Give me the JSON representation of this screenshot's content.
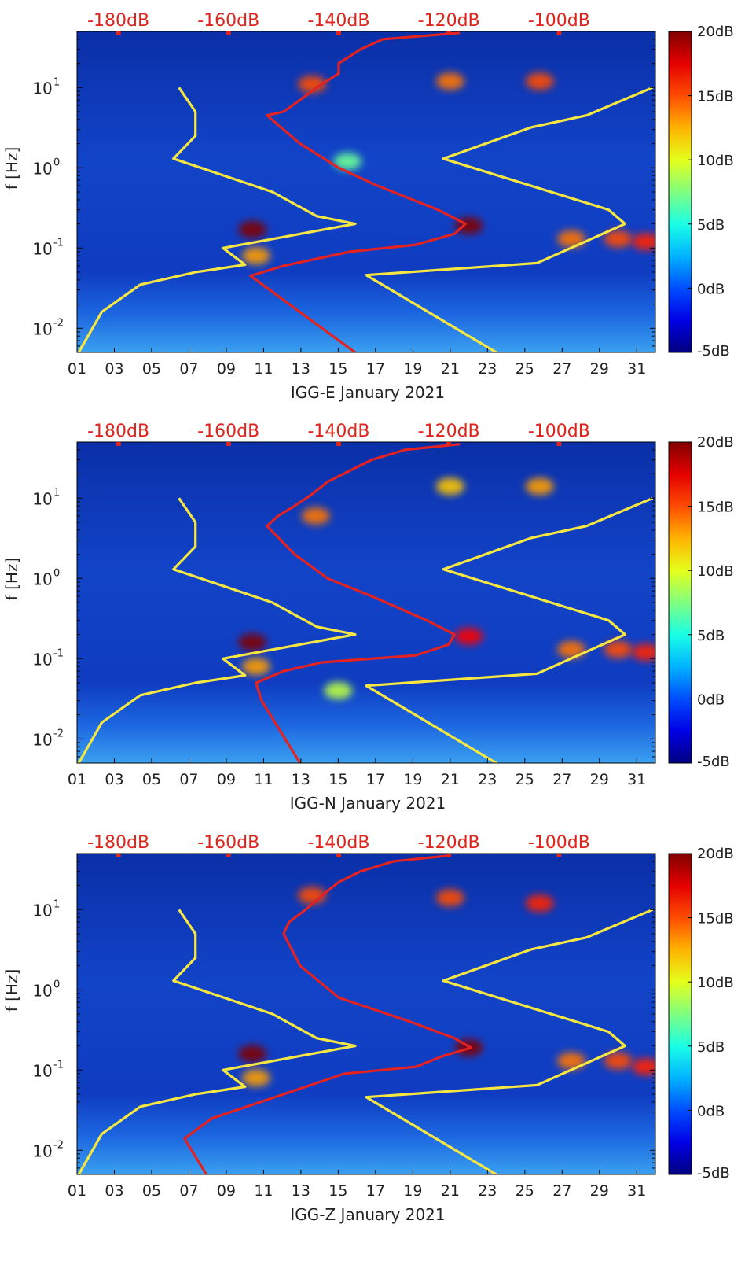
{
  "chart_data": [
    {
      "type": "heatmap",
      "title": "",
      "xlabel": "IGG-E January 2021",
      "ylabel": "f [Hz]",
      "x_ticks": [
        "01",
        "03",
        "05",
        "07",
        "09",
        "11",
        "13",
        "15",
        "17",
        "19",
        "21",
        "23",
        "25",
        "27",
        "29",
        "31"
      ],
      "y_ticks": [
        "10^-2",
        "10^-1",
        "10^0",
        "10^1"
      ],
      "xlim": [
        1,
        32
      ],
      "ylim": [
        0.005,
        50
      ],
      "y_scale": "log",
      "top_ticks": [
        "-180dB",
        "-160dB",
        "-140dB",
        "-120dB",
        "-100dB"
      ],
      "top_range": [
        -187.5,
        -82.5
      ],
      "colorbar": {
        "ticks": [
          "20dB",
          "15dB",
          "10dB",
          "5dB",
          "0dB",
          "-5dB"
        ],
        "range": [
          -5,
          20
        ],
        "colormap": "jet"
      },
      "hotspots_db": [
        {
          "day": 10.4,
          "f": 0.17,
          "value": 20
        },
        {
          "day": 22.0,
          "f": 0.19,
          "value": 20
        },
        {
          "day": 13.6,
          "f": 11,
          "value": 15
        },
        {
          "day": 21.0,
          "f": 12,
          "value": 14
        },
        {
          "day": 25.8,
          "f": 12,
          "value": 15
        },
        {
          "day": 27.5,
          "f": 0.13,
          "value": 14
        },
        {
          "day": 30.0,
          "f": 0.13,
          "value": 15
        },
        {
          "day": 31.5,
          "f": 0.12,
          "value": 16
        },
        {
          "day": 10.6,
          "f": 0.08,
          "value": 13
        },
        {
          "day": 15.5,
          "f": 1.2,
          "value": 7
        }
      ],
      "series": [
        {
          "color": "#f5e642",
          "segments": [
            {
              "points": [
                [
                  -188,
                  0.004
                ],
                [
                  -183,
                  0.016
                ],
                [
                  -176,
                  0.035
                ],
                [
                  -166,
                  0.05
                ],
                [
                  -157,
                  0.062
                ],
                [
                  -161,
                  0.1
                ],
                [
                  -137,
                  0.2
                ],
                [
                  -144,
                  0.25
                ],
                [
                  -152,
                  0.5
                ],
                [
                  -170,
                  1.3
                ],
                [
                  -166,
                  2.5
                ],
                [
                  -166,
                  5
                ],
                [
                  -169,
                  10
                ]
              ]
            },
            {
              "points": [
                [
                  -109,
                  0.004
                ],
                [
                  -135,
                  0.046
                ],
                [
                  -104,
                  0.065
                ],
                [
                  -88,
                  0.2
                ],
                [
                  -91,
                  0.3
                ],
                [
                  -121,
                  1.3
                ],
                [
                  -105,
                  3.2
                ],
                [
                  -95,
                  4.5
                ],
                [
                  -83,
                  10
                ]
              ]
            }
          ]
        },
        {
          "color": "#e32222",
          "segments": [
            {
              "points": [
                [
                  -137,
                  0.005
                ],
                [
                  -156,
                  0.045
                ],
                [
                  -150,
                  0.06
                ],
                [
                  -138,
                  0.09
                ],
                [
                  -126,
                  0.11
                ],
                [
                  -119,
                  0.15
                ],
                [
                  -117,
                  0.2
                ],
                [
                  -122,
                  0.3
                ],
                [
                  -133,
                  0.6
                ],
                [
                  -140,
                  1.0
                ],
                [
                  -147,
                  2.0
                ],
                [
                  -153,
                  4.5
                ],
                [
                  -150,
                  5
                ],
                [
                  -147,
                  7
                ],
                [
                  -144,
                  10
                ],
                [
                  -140,
                  15
                ],
                [
                  -140,
                  20
                ],
                [
                  -136,
                  30
                ],
                [
                  -132,
                  40
                ],
                [
                  -118,
                  48
                ]
              ]
            }
          ]
        }
      ]
    },
    {
      "type": "heatmap",
      "title": "",
      "xlabel": "IGG-N January 2021",
      "ylabel": "f [Hz]",
      "x_ticks": [
        "01",
        "03",
        "05",
        "07",
        "09",
        "11",
        "13",
        "15",
        "17",
        "19",
        "21",
        "23",
        "25",
        "27",
        "29",
        "31"
      ],
      "y_ticks": [
        "10^-2",
        "10^-1",
        "10^0",
        "10^1"
      ],
      "xlim": [
        1,
        32
      ],
      "ylim": [
        0.005,
        50
      ],
      "y_scale": "log",
      "top_ticks": [
        "-180dB",
        "-160dB",
        "-140dB",
        "-120dB",
        "-100dB"
      ],
      "top_range": [
        -187.5,
        -82.5
      ],
      "colorbar": {
        "ticks": [
          "20dB",
          "15dB",
          "10dB",
          "5dB",
          "0dB",
          "-5dB"
        ],
        "range": [
          -5,
          20
        ],
        "colormap": "jet"
      },
      "hotspots_db": [
        {
          "day": 10.4,
          "f": 0.16,
          "value": 20
        },
        {
          "day": 22.0,
          "f": 0.19,
          "value": 17
        },
        {
          "day": 13.8,
          "f": 6,
          "value": 14
        },
        {
          "day": 21.0,
          "f": 14,
          "value": 12
        },
        {
          "day": 25.8,
          "f": 14,
          "value": 13
        },
        {
          "day": 27.5,
          "f": 0.13,
          "value": 14
        },
        {
          "day": 30.0,
          "f": 0.13,
          "value": 15
        },
        {
          "day": 31.5,
          "f": 0.12,
          "value": 16
        },
        {
          "day": 10.6,
          "f": 0.08,
          "value": 13
        },
        {
          "day": 15.0,
          "f": 0.04,
          "value": 9
        }
      ],
      "series": [
        {
          "color": "#f5e642",
          "segments": [
            {
              "points": [
                [
                  -188,
                  0.004
                ],
                [
                  -183,
                  0.016
                ],
                [
                  -176,
                  0.035
                ],
                [
                  -166,
                  0.05
                ],
                [
                  -157,
                  0.062
                ],
                [
                  -161,
                  0.1
                ],
                [
                  -137,
                  0.2
                ],
                [
                  -144,
                  0.25
                ],
                [
                  -152,
                  0.5
                ],
                [
                  -170,
                  1.3
                ],
                [
                  -166,
                  2.5
                ],
                [
                  -166,
                  5
                ],
                [
                  -169,
                  10
                ]
              ]
            },
            {
              "points": [
                [
                  -109,
                  0.004
                ],
                [
                  -135,
                  0.046
                ],
                [
                  -104,
                  0.065
                ],
                [
                  -88,
                  0.2
                ],
                [
                  -91,
                  0.3
                ],
                [
                  -121,
                  1.3
                ],
                [
                  -105,
                  3.2
                ],
                [
                  -95,
                  4.5
                ],
                [
                  -83,
                  10
                ]
              ]
            }
          ]
        },
        {
          "color": "#e32222",
          "segments": [
            {
              "points": [
                [
                  -147,
                  0.005
                ],
                [
                  -154,
                  0.03
                ],
                [
                  -155,
                  0.05
                ],
                [
                  -150,
                  0.07
                ],
                [
                  -143,
                  0.09
                ],
                [
                  -126,
                  0.11
                ],
                [
                  -120,
                  0.15
                ],
                [
                  -119,
                  0.2
                ],
                [
                  -124,
                  0.3
                ],
                [
                  -134,
                  0.6
                ],
                [
                  -142,
                  1.0
                ],
                [
                  -148,
                  2.0
                ],
                [
                  -153,
                  4.5
                ],
                [
                  -151,
                  6
                ],
                [
                  -148,
                  8
                ],
                [
                  -145,
                  11
                ],
                [
                  -142,
                  16
                ],
                [
                  -138,
                  22
                ],
                [
                  -134,
                  30
                ],
                [
                  -128,
                  40
                ],
                [
                  -118,
                  47
                ]
              ]
            }
          ]
        }
      ]
    },
    {
      "type": "heatmap",
      "title": "",
      "xlabel": "IGG-Z January 2021",
      "ylabel": "f [Hz]",
      "x_ticks": [
        "01",
        "03",
        "05",
        "07",
        "09",
        "11",
        "13",
        "15",
        "17",
        "19",
        "21",
        "23",
        "25",
        "27",
        "29",
        "31"
      ],
      "y_ticks": [
        "10^-2",
        "10^-1",
        "10^0",
        "10^1"
      ],
      "xlim": [
        1,
        32
      ],
      "ylim": [
        0.005,
        50
      ],
      "y_scale": "log",
      "top_ticks": [
        "-180dB",
        "-160dB",
        "-140dB",
        "-120dB",
        "-100dB"
      ],
      "top_range": [
        -187.5,
        -82.5
      ],
      "colorbar": {
        "ticks": [
          "20dB",
          "15dB",
          "10dB",
          "5dB",
          "0dB",
          "-5dB"
        ],
        "range": [
          -5,
          20
        ],
        "colormap": "jet"
      },
      "hotspots_db": [
        {
          "day": 10.4,
          "f": 0.16,
          "value": 20
        },
        {
          "day": 22.0,
          "f": 0.19,
          "value": 20
        },
        {
          "day": 13.6,
          "f": 15,
          "value": 15
        },
        {
          "day": 21.0,
          "f": 14,
          "value": 15
        },
        {
          "day": 25.8,
          "f": 12,
          "value": 16
        },
        {
          "day": 27.5,
          "f": 0.13,
          "value": 14
        },
        {
          "day": 30.0,
          "f": 0.13,
          "value": 15
        },
        {
          "day": 31.5,
          "f": 0.11,
          "value": 16
        },
        {
          "day": 10.6,
          "f": 0.08,
          "value": 13
        }
      ],
      "series": [
        {
          "color": "#f5e642",
          "segments": [
            {
              "points": [
                [
                  -188,
                  0.004
                ],
                [
                  -183,
                  0.016
                ],
                [
                  -176,
                  0.035
                ],
                [
                  -166,
                  0.05
                ],
                [
                  -157,
                  0.062
                ],
                [
                  -161,
                  0.1
                ],
                [
                  -137,
                  0.2
                ],
                [
                  -144,
                  0.25
                ],
                [
                  -152,
                  0.5
                ],
                [
                  -170,
                  1.3
                ],
                [
                  -166,
                  2.5
                ],
                [
                  -166,
                  5
                ],
                [
                  -169,
                  10
                ]
              ]
            },
            {
              "points": [
                [
                  -109,
                  0.004
                ],
                [
                  -135,
                  0.046
                ],
                [
                  -104,
                  0.065
                ],
                [
                  -88,
                  0.2
                ],
                [
                  -91,
                  0.3
                ],
                [
                  -121,
                  1.3
                ],
                [
                  -105,
                  3.2
                ],
                [
                  -95,
                  4.5
                ],
                [
                  -83,
                  10
                ]
              ]
            }
          ]
        },
        {
          "color": "#e32222",
          "segments": [
            {
              "points": [
                [
                  -164,
                  0.005
                ],
                [
                  -168,
                  0.014
                ],
                [
                  -163,
                  0.025
                ],
                [
                  -150,
                  0.05
                ],
                [
                  -139,
                  0.09
                ],
                [
                  -126,
                  0.11
                ],
                [
                  -121,
                  0.15
                ],
                [
                  -116,
                  0.19
                ],
                [
                  -119,
                  0.25
                ],
                [
                  -127,
                  0.4
                ],
                [
                  -140,
                  0.8
                ],
                [
                  -147,
                  2.0
                ],
                [
                  -150,
                  5
                ],
                [
                  -149,
                  7
                ],
                [
                  -146,
                  10
                ],
                [
                  -143,
                  15
                ],
                [
                  -140,
                  22
                ],
                [
                  -136,
                  30
                ],
                [
                  -130,
                  40
                ],
                [
                  -120,
                  47
                ]
              ]
            }
          ]
        }
      ]
    }
  ]
}
